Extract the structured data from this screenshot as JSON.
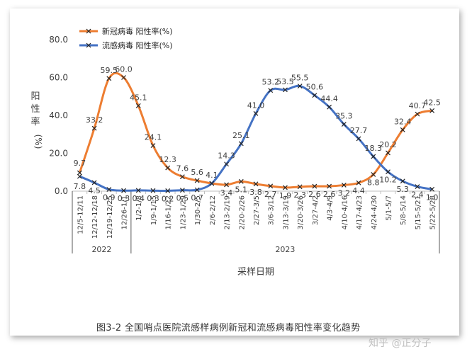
{
  "chart_data": {
    "type": "line",
    "ylabel": "阳性率(%)",
    "xlabel": "采样日期",
    "ylim": [
      0,
      80
    ],
    "yticks": [
      "0.0",
      "20.0",
      "40.0",
      "60.0",
      "80.0"
    ],
    "legend_position": "top-left",
    "categories": [
      "12/5-12/11",
      "12/12-12/18",
      "12/19-12/25",
      "12/26-1/1",
      "1/2-1/8",
      "1/9-1/15",
      "1/16-1/22",
      "1/23-1/29",
      "1/30-2/5",
      "2/6-2/12",
      "2/13-2/19",
      "2/20-2/26",
      "2/27-3/5",
      "3/6-3/12",
      "3/13-3/19",
      "3/20-3/26",
      "3/27-4/2",
      "4/3-4/9",
      "4/10-4/16",
      "4/17-4/23",
      "4/24-4/30",
      "5/1-5/7",
      "5/8-5/14",
      "5/15-5/21",
      "5/22-5/28"
    ],
    "year_groups": [
      {
        "label": "2022",
        "start": 0,
        "end": 3
      },
      {
        "label": "2023",
        "start": 4,
        "end": 24
      }
    ],
    "series": [
      {
        "name": "新冠病毒 阳性率(%)",
        "color": "#ed7d31",
        "values": [
          9.7,
          33.2,
          59.5,
          60.0,
          45.1,
          24.1,
          12.3,
          7.6,
          5.6,
          4.1,
          3.4,
          5.1,
          3.8,
          2.7,
          1.9,
          2.3,
          2.6,
          2.6,
          3.2,
          4.4,
          8.8,
          20.2,
          32.4,
          40.7,
          42.5
        ],
        "labels": [
          "9.7",
          "33.2",
          "59.5",
          "60.0",
          "45.1",
          "24.1",
          "12.3",
          "7.6",
          "5.6",
          "4.1",
          "3.4",
          "5.1",
          "3.8",
          "2.7",
          "1.9",
          "2.3",
          "2.6",
          "2.6",
          "3.2",
          "4.4",
          "8.8",
          "20.2",
          "32.4",
          "40.7",
          "42.5"
        ]
      },
      {
        "name": "流感病毒 阳性率(%)",
        "color": "#4472c4",
        "values": [
          7.8,
          4.5,
          0.9,
          0.3,
          0.4,
          0.3,
          0.2,
          0.5,
          0.7,
          4.1,
          14.3,
          25.1,
          41.0,
          53.2,
          53.5,
          55.5,
          50.6,
          44.4,
          35.3,
          27.7,
          18.3,
          10.2,
          5.3,
          2.4,
          1.0
        ],
        "labels": [
          "7.8",
          "4.5",
          "0.9",
          "0.3",
          "0.4",
          "0.3",
          "0.2",
          "0.5",
          "0.7",
          "",
          "14.3",
          "25.1",
          "41.0",
          "53.2",
          "53.5",
          "55.5",
          "50.6",
          "44.4",
          "35.3",
          "27.7",
          "18.3",
          "10.2",
          "5.3",
          "2.4",
          "1.0"
        ]
      }
    ]
  },
  "caption": "图3-2 全国哨点医院流感样病例新冠和流感病毒阳性率变化趋势",
  "watermark": "知乎 @正分子"
}
